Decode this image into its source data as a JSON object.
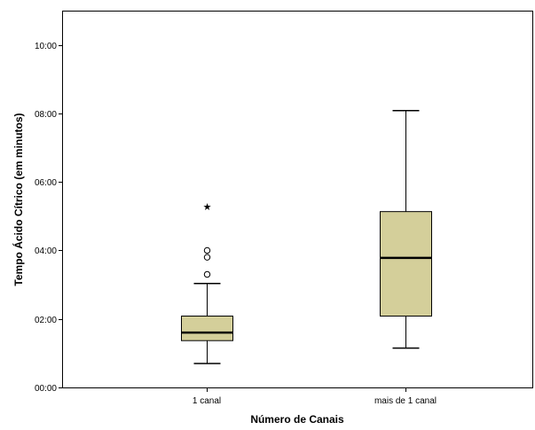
{
  "chart_data": {
    "type": "boxplot",
    "xlabel": "Número de Canais",
    "ylabel": "Tempo Ácido Cítrico (em minutos)",
    "y_unit": "minutes",
    "ylim": [
      0,
      660
    ],
    "y_ticks": [
      {
        "value": 0,
        "label": "00:00"
      },
      {
        "value": 120,
        "label": "02:00"
      },
      {
        "value": 240,
        "label": "04:00"
      },
      {
        "value": 360,
        "label": "06:00"
      },
      {
        "value": 480,
        "label": "08:00"
      },
      {
        "value": 600,
        "label": "10:00"
      }
    ],
    "categories": [
      "1 canal",
      "mais de 1 canal"
    ],
    "boxes": [
      {
        "category": "1 canal",
        "whisker_low": 42,
        "q1": 82,
        "median": 96,
        "q3": 125,
        "whisker_high": 182,
        "outliers": [
          198,
          228,
          240
        ],
        "extremes": [
          317
        ]
      },
      {
        "category": "mais de 1 canal",
        "whisker_low": 69,
        "q1": 125,
        "median": 227,
        "q3": 308,
        "whisker_high": 485,
        "outliers": [],
        "extremes": []
      }
    ],
    "box_fill": "#d4cf9a",
    "grid": false,
    "legend": "none"
  }
}
